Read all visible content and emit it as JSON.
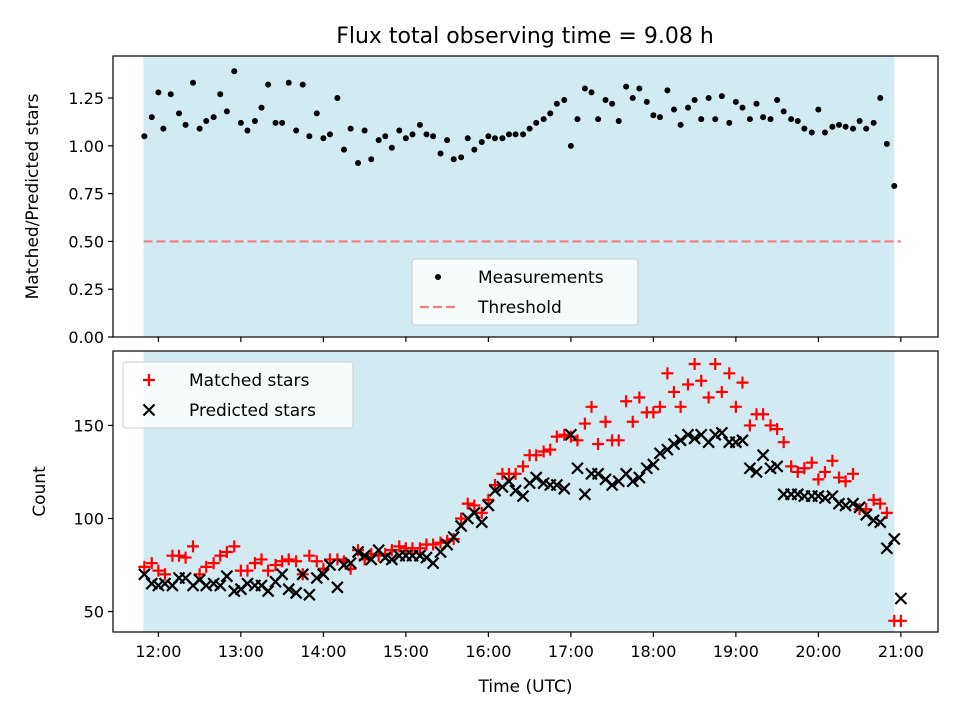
{
  "figure_title": "Flux total observing time = 9.08 h",
  "colors": {
    "band": "#add8e6",
    "measure": "#000000",
    "threshold": "#f08080",
    "matched": "#ff0000",
    "predicted": "#000000"
  },
  "chart_data": [
    {
      "type": "scatter",
      "title": "Flux total observing time = 9.08 h",
      "xlabel": "",
      "ylabel": "Matched/Predicted stars",
      "xlim": [
        11.45,
        21.45
      ],
      "ylim": [
        0.0,
        1.47
      ],
      "yticks": [
        0.0,
        0.25,
        0.5,
        0.75,
        1.0,
        1.25
      ],
      "yticklabels": [
        "0.00",
        "0.25",
        "0.50",
        "0.75",
        "1.00",
        "1.25"
      ],
      "xticks": [
        12,
        13,
        14,
        15,
        16,
        17,
        18,
        19,
        20,
        21
      ],
      "observing_band": [
        11.82,
        20.92
      ],
      "threshold": 0.5,
      "legend": {
        "placement": "lower-center",
        "entries": [
          "Measurements",
          "Threshold"
        ]
      },
      "series": [
        {
          "name": "Measurements",
          "kind": "dots",
          "x": [
            11.83,
            11.92,
            12.0,
            12.06,
            12.15,
            12.25,
            12.33,
            12.42,
            12.5,
            12.58,
            12.67,
            12.75,
            12.83,
            12.92,
            13.0,
            13.08,
            13.17,
            13.25,
            13.33,
            13.42,
            13.5,
            13.58,
            13.67,
            13.75,
            13.83,
            13.92,
            14.0,
            14.08,
            14.17,
            14.25,
            14.33,
            14.42,
            14.5,
            14.58,
            14.67,
            14.75,
            14.83,
            14.92,
            15.0,
            15.08,
            15.17,
            15.25,
            15.33,
            15.42,
            15.5,
            15.58,
            15.67,
            15.75,
            15.83,
            15.92,
            16.0,
            16.08,
            16.17,
            16.25,
            16.33,
            16.42,
            16.5,
            16.58,
            16.67,
            16.75,
            16.83,
            16.92,
            17.0,
            17.08,
            17.17,
            17.25,
            17.33,
            17.42,
            17.5,
            17.58,
            17.67,
            17.75,
            17.83,
            17.92,
            18.0,
            18.08,
            18.17,
            18.25,
            18.33,
            18.42,
            18.5,
            18.58,
            18.67,
            18.75,
            18.83,
            18.92,
            19.0,
            19.08,
            19.17,
            19.25,
            19.33,
            19.42,
            19.5,
            19.58,
            19.67,
            19.75,
            19.83,
            19.92,
            20.0,
            20.08,
            20.17,
            20.25,
            20.33,
            20.42,
            20.5,
            20.58,
            20.67,
            20.75,
            20.83,
            20.92
          ],
          "y": [
            1.05,
            1.15,
            1.28,
            1.09,
            1.27,
            1.17,
            1.11,
            1.33,
            1.09,
            1.13,
            1.15,
            1.27,
            1.18,
            1.39,
            1.12,
            1.08,
            1.13,
            1.2,
            1.32,
            1.12,
            1.12,
            1.33,
            1.08,
            1.32,
            1.05,
            1.17,
            1.04,
            1.06,
            1.25,
            0.98,
            1.09,
            0.91,
            1.08,
            0.93,
            1.03,
            1.05,
            0.99,
            1.08,
            1.04,
            1.06,
            1.11,
            1.06,
            1.05,
            0.96,
            1.03,
            0.93,
            0.94,
            1.04,
            0.98,
            1.02,
            1.05,
            1.04,
            1.04,
            1.06,
            1.06,
            1.06,
            1.09,
            1.12,
            1.14,
            1.17,
            1.22,
            1.24,
            1.0,
            1.14,
            1.3,
            1.28,
            1.14,
            1.24,
            1.22,
            1.13,
            1.31,
            1.25,
            1.3,
            1.23,
            1.16,
            1.15,
            1.29,
            1.19,
            1.11,
            1.2,
            1.24,
            1.14,
            1.25,
            1.14,
            1.26,
            1.12,
            1.23,
            1.2,
            1.14,
            1.22,
            1.15,
            1.14,
            1.24,
            1.18,
            1.14,
            1.13,
            1.09,
            1.07,
            1.19,
            1.07,
            1.1,
            1.11,
            1.1,
            1.09,
            1.13,
            1.09,
            1.12,
            1.25,
            1.01,
            0.79
          ]
        }
      ]
    },
    {
      "type": "scatter",
      "title": "",
      "xlabel": "Time (UTC)",
      "ylabel": "Count",
      "xlim": [
        11.45,
        21.45
      ],
      "ylim": [
        39.0,
        190.0
      ],
      "yticks": [
        50,
        100,
        150
      ],
      "yticklabels": [
        "50",
        "100",
        "150"
      ],
      "xticks": [
        12,
        13,
        14,
        15,
        16,
        17,
        18,
        19,
        20,
        21
      ],
      "xticklabels": [
        "12:00",
        "13:00",
        "14:00",
        "15:00",
        "16:00",
        "17:00",
        "18:00",
        "19:00",
        "20:00",
        "21:00"
      ],
      "observing_band": [
        11.82,
        20.92
      ],
      "legend": {
        "placement": "top-left",
        "entries": [
          "Matched stars",
          "Predicted stars"
        ]
      },
      "series": [
        {
          "name": "Matched stars",
          "kind": "plus",
          "x": [
            11.83,
            11.92,
            12.0,
            12.08,
            12.17,
            12.25,
            12.33,
            12.42,
            12.5,
            12.58,
            12.67,
            12.75,
            12.83,
            12.92,
            13.0,
            13.08,
            13.17,
            13.25,
            13.33,
            13.42,
            13.5,
            13.58,
            13.67,
            13.75,
            13.83,
            13.92,
            14.0,
            14.08,
            14.17,
            14.25,
            14.33,
            14.42,
            14.5,
            14.58,
            14.67,
            14.75,
            14.83,
            14.92,
            15.0,
            15.08,
            15.17,
            15.25,
            15.33,
            15.42,
            15.5,
            15.58,
            15.67,
            15.75,
            15.83,
            15.92,
            16.0,
            16.08,
            16.17,
            16.25,
            16.33,
            16.42,
            16.5,
            16.58,
            16.67,
            16.75,
            16.83,
            16.92,
            17.0,
            17.08,
            17.17,
            17.25,
            17.33,
            17.42,
            17.5,
            17.58,
            17.67,
            17.75,
            17.83,
            17.92,
            18.0,
            18.08,
            18.17,
            18.25,
            18.33,
            18.42,
            18.5,
            18.58,
            18.67,
            18.75,
            18.83,
            18.92,
            19.0,
            19.08,
            19.17,
            19.25,
            19.33,
            19.42,
            19.5,
            19.58,
            19.67,
            19.75,
            19.83,
            19.92,
            20.0,
            20.08,
            20.17,
            20.25,
            20.33,
            20.42,
            20.5,
            20.58,
            20.67,
            20.75,
            20.83,
            20.92,
            21.0
          ],
          "y": [
            74,
            76,
            72,
            70,
            80,
            80,
            79,
            85,
            70,
            74,
            76,
            80,
            82,
            85,
            72,
            72,
            76,
            78,
            72,
            75,
            77,
            78,
            77,
            70,
            80,
            77,
            73,
            78,
            78,
            77,
            73,
            83,
            78,
            81,
            80,
            81,
            83,
            85,
            84,
            84,
            84,
            86,
            86,
            87,
            88,
            89,
            100,
            108,
            107,
            103,
            110,
            118,
            124,
            124,
            124,
            128,
            134,
            134,
            136,
            137,
            144,
            145,
            144,
            142,
            151,
            160,
            140,
            152,
            142,
            142,
            163,
            152,
            165,
            157,
            157,
            160,
            178,
            168,
            160,
            172,
            183,
            174,
            165,
            183,
            168,
            178,
            160,
            173,
            150,
            156,
            156,
            150,
            148,
            141,
            128,
            125,
            127,
            130,
            121,
            125,
            131,
            122,
            120,
            124,
            105,
            105,
            110,
            108,
            103,
            45,
            45
          ]
        },
        {
          "name": "Predicted stars",
          "kind": "x",
          "x": [
            11.83,
            11.92,
            12.0,
            12.08,
            12.17,
            12.25,
            12.33,
            12.42,
            12.5,
            12.58,
            12.67,
            12.75,
            12.83,
            12.92,
            13.0,
            13.08,
            13.17,
            13.25,
            13.33,
            13.42,
            13.5,
            13.58,
            13.67,
            13.75,
            13.83,
            13.92,
            14.0,
            14.08,
            14.17,
            14.25,
            14.33,
            14.42,
            14.5,
            14.58,
            14.67,
            14.75,
            14.83,
            14.92,
            15.0,
            15.08,
            15.17,
            15.25,
            15.33,
            15.42,
            15.5,
            15.58,
            15.67,
            15.75,
            15.83,
            15.92,
            16.0,
            16.08,
            16.17,
            16.25,
            16.33,
            16.42,
            16.5,
            16.58,
            16.67,
            16.75,
            16.83,
            16.92,
            17.0,
            17.08,
            17.17,
            17.25,
            17.33,
            17.42,
            17.5,
            17.58,
            17.67,
            17.75,
            17.83,
            17.92,
            18.0,
            18.08,
            18.17,
            18.25,
            18.33,
            18.42,
            18.5,
            18.58,
            18.67,
            18.75,
            18.83,
            18.92,
            19.0,
            19.08,
            19.17,
            19.25,
            19.33,
            19.42,
            19.5,
            19.58,
            19.67,
            19.75,
            19.83,
            19.92,
            20.0,
            20.08,
            20.17,
            20.25,
            20.33,
            20.42,
            20.5,
            20.58,
            20.67,
            20.75,
            20.83,
            20.92,
            21.0
          ],
          "y": [
            70,
            65,
            64,
            65,
            64,
            68,
            68,
            64,
            67,
            64,
            65,
            64,
            69,
            61,
            62,
            65,
            64,
            64,
            61,
            66,
            70,
            62,
            60,
            70,
            59,
            68,
            70,
            75,
            63,
            75,
            76,
            82,
            80,
            78,
            83,
            79,
            78,
            80,
            80,
            80,
            80,
            79,
            76,
            82,
            86,
            90,
            96,
            100,
            103,
            98,
            107,
            115,
            117,
            120,
            115,
            112,
            119,
            122,
            119,
            118,
            118,
            116,
            145,
            127,
            113,
            124,
            124,
            121,
            118,
            120,
            124,
            120,
            122,
            127,
            129,
            135,
            137,
            140,
            142,
            145,
            143,
            145,
            141,
            145,
            146,
            141,
            141,
            142,
            127,
            125,
            134,
            127,
            128,
            113,
            113,
            113,
            112,
            112,
            112,
            111,
            112,
            108,
            107,
            108,
            106,
            102,
            99,
            98,
            84,
            89,
            57
          ]
        }
      ]
    }
  ]
}
